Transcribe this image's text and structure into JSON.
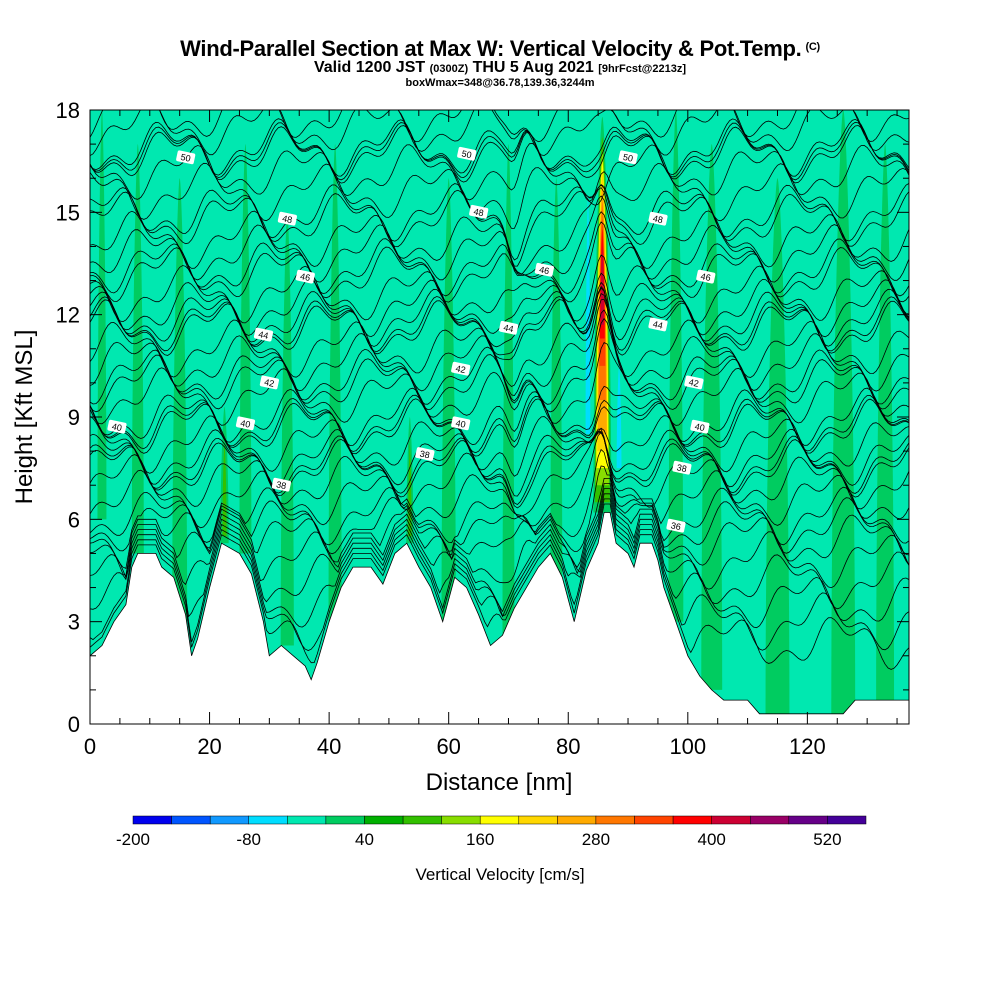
{
  "header": {
    "title": "Wind-Parallel Section at Max W: Vertical Velocity & Pot.Temp.",
    "copyright": "(C)",
    "valid_main": "Valid 1200 JST",
    "valid_utc": "(0300Z)",
    "valid_date": "THU 5 Aug 2021",
    "valid_fcst": "[9hrFcst@2213z]",
    "box_info": "boxWmax=348@36.78,139.36,3244m"
  },
  "chart_data": {
    "type": "heatmap",
    "title": "Wind-Parallel Section at Max W: Vertical Velocity & Pot.Temp.",
    "xlabel": "Distance [nm]",
    "ylabel": "Height [Kft MSL]",
    "xlim": [
      0,
      137
    ],
    "ylim": [
      0,
      18
    ],
    "x_ticks": [
      "0",
      "20",
      "40",
      "60",
      "80",
      "100",
      "120"
    ],
    "y_ticks": [
      "0",
      "3",
      "6",
      "9",
      "12",
      "15",
      "18"
    ],
    "colorbar": {
      "label": "Vertical Velocity [cm/s]",
      "tick_labels": [
        "-200",
        "-80",
        "40",
        "160",
        "280",
        "400",
        "520"
      ],
      "tick_values": [
        -200,
        -80,
        40,
        160,
        280,
        400,
        520
      ],
      "min": -200,
      "max": 560,
      "step": 40,
      "colors": [
        "#0000ee",
        "#0055ff",
        "#1199ff",
        "#00ddff",
        "#00e8b0",
        "#00cc60",
        "#00b000",
        "#33c000",
        "#88dd00",
        "#ffff00",
        "#ffd700",
        "#ffaa00",
        "#ff7700",
        "#ff4400",
        "#ff0000",
        "#cc0033",
        "#990066",
        "#660088",
        "#440099"
      ]
    },
    "background_color": "#00e8b0",
    "terrain_color": "#ffffff",
    "terrain": [
      {
        "x": 0,
        "h": 2.0
      },
      {
        "x": 2,
        "h": 2.3
      },
      {
        "x": 4,
        "h": 3.0
      },
      {
        "x": 6,
        "h": 3.5
      },
      {
        "x": 7,
        "h": 4.6
      },
      {
        "x": 8,
        "h": 5.0
      },
      {
        "x": 11,
        "h": 5.0
      },
      {
        "x": 12,
        "h": 4.6
      },
      {
        "x": 14,
        "h": 4.3
      },
      {
        "x": 16,
        "h": 3.2
      },
      {
        "x": 17,
        "h": 2.0
      },
      {
        "x": 18,
        "h": 2.5
      },
      {
        "x": 20,
        "h": 4.0
      },
      {
        "x": 22,
        "h": 5.3
      },
      {
        "x": 25,
        "h": 5.0
      },
      {
        "x": 27,
        "h": 4.4
      },
      {
        "x": 29,
        "h": 3.0
      },
      {
        "x": 30,
        "h": 2.0
      },
      {
        "x": 32,
        "h": 2.3
      },
      {
        "x": 34,
        "h": 2.0
      },
      {
        "x": 36,
        "h": 1.7
      },
      {
        "x": 37,
        "h": 1.3
      },
      {
        "x": 38,
        "h": 1.8
      },
      {
        "x": 40,
        "h": 3.0
      },
      {
        "x": 42,
        "h": 4.0
      },
      {
        "x": 44,
        "h": 4.6
      },
      {
        "x": 47,
        "h": 4.6
      },
      {
        "x": 49,
        "h": 4.1
      },
      {
        "x": 51,
        "h": 5.0
      },
      {
        "x": 53,
        "h": 5.3
      },
      {
        "x": 55,
        "h": 4.6
      },
      {
        "x": 57,
        "h": 4.0
      },
      {
        "x": 59,
        "h": 3.0
      },
      {
        "x": 61,
        "h": 4.3
      },
      {
        "x": 63,
        "h": 4.0
      },
      {
        "x": 65,
        "h": 3.2
      },
      {
        "x": 67,
        "h": 2.3
      },
      {
        "x": 69,
        "h": 2.6
      },
      {
        "x": 71,
        "h": 3.4
      },
      {
        "x": 73,
        "h": 4.0
      },
      {
        "x": 75,
        "h": 4.6
      },
      {
        "x": 77,
        "h": 5.0
      },
      {
        "x": 79,
        "h": 4.3
      },
      {
        "x": 81,
        "h": 3.0
      },
      {
        "x": 83,
        "h": 4.5
      },
      {
        "x": 85,
        "h": 5.3
      },
      {
        "x": 86,
        "h": 6.2
      },
      {
        "x": 87,
        "h": 6.2
      },
      {
        "x": 88,
        "h": 5.3
      },
      {
        "x": 90,
        "h": 5.0
      },
      {
        "x": 91,
        "h": 4.6
      },
      {
        "x": 92,
        "h": 5.3
      },
      {
        "x": 94,
        "h": 5.3
      },
      {
        "x": 95,
        "h": 4.8
      },
      {
        "x": 96,
        "h": 4.0
      },
      {
        "x": 98,
        "h": 3.0
      },
      {
        "x": 100,
        "h": 2.0
      },
      {
        "x": 102,
        "h": 1.4
      },
      {
        "x": 104,
        "h": 1.0
      },
      {
        "x": 106,
        "h": 0.7
      },
      {
        "x": 110,
        "h": 0.7
      },
      {
        "x": 112,
        "h": 0.3
      },
      {
        "x": 120,
        "h": 0.3
      },
      {
        "x": 126,
        "h": 0.3
      },
      {
        "x": 128,
        "h": 0.7
      },
      {
        "x": 137,
        "h": 0.7
      }
    ],
    "updrafts": [
      {
        "x": 2,
        "width": 1.5,
        "bottom": 6,
        "top": 18,
        "color": "#00cc60"
      },
      {
        "x": 8,
        "width": 2.0,
        "bottom": 5,
        "top": 17,
        "color": "#00cc60"
      },
      {
        "x": 15,
        "width": 2.5,
        "bottom": 3,
        "top": 16,
        "color": "#00cc60"
      },
      {
        "x": 22.5,
        "width": 1.4,
        "bottom": 5.3,
        "top": 9.3,
        "color": "#00cc60"
      },
      {
        "x": 22.5,
        "width": 0.7,
        "bottom": 5.5,
        "top": 8.2,
        "color": "#33c000"
      },
      {
        "x": 26,
        "width": 2.0,
        "bottom": 5,
        "top": 17,
        "color": "#00cc60"
      },
      {
        "x": 33,
        "width": 2.2,
        "bottom": 2.3,
        "top": 15,
        "color": "#00cc60"
      },
      {
        "x": 41,
        "width": 2.2,
        "bottom": 3,
        "top": 17,
        "color": "#00cc60"
      },
      {
        "x": 53.5,
        "width": 1.2,
        "bottom": 5.3,
        "top": 9.0,
        "color": "#00cc60"
      },
      {
        "x": 53.5,
        "width": 0.6,
        "bottom": 5.5,
        "top": 8.2,
        "color": "#33c000"
      },
      {
        "x": 60,
        "width": 2.4,
        "bottom": 3,
        "top": 16,
        "color": "#00cc60"
      },
      {
        "x": 70,
        "width": 2.0,
        "bottom": 2.6,
        "top": 17,
        "color": "#00cc60"
      },
      {
        "x": 78,
        "width": 2.0,
        "bottom": 4.3,
        "top": 16,
        "color": "#00cc60"
      },
      {
        "x": 98,
        "width": 2.5,
        "bottom": 3,
        "top": 18,
        "color": "#00cc60"
      },
      {
        "x": 104,
        "width": 3.5,
        "bottom": 1,
        "top": 17,
        "color": "#00cc60"
      },
      {
        "x": 115,
        "width": 4.0,
        "bottom": 0.3,
        "top": 16,
        "color": "#00cc60"
      },
      {
        "x": 126,
        "width": 4.0,
        "bottom": 0.3,
        "top": 18,
        "color": "#00cc60"
      },
      {
        "x": 133,
        "width": 3.0,
        "bottom": 0.7,
        "top": 17,
        "color": "#00cc60"
      }
    ],
    "core_updraft": {
      "x": 85.7,
      "layers": [
        {
          "width": 3.0,
          "bottom": 6.2,
          "top": 17.8,
          "color": "#00cc60"
        },
        {
          "width": 2.5,
          "bottom": 6.5,
          "top": 17.2,
          "color": "#33c000"
        },
        {
          "width": 2.2,
          "bottom": 7.0,
          "top": 16.8,
          "color": "#88dd00"
        },
        {
          "width": 2.0,
          "bottom": 7.5,
          "top": 16.5,
          "color": "#ffff00"
        },
        {
          "width": 1.7,
          "bottom": 8.0,
          "top": 16.2,
          "color": "#ffd700"
        },
        {
          "width": 1.5,
          "bottom": 8.5,
          "top": 15.8,
          "color": "#ffaa00"
        },
        {
          "width": 1.2,
          "bottom": 9.5,
          "top": 15.3,
          "color": "#ff7700"
        },
        {
          "width": 1.0,
          "bottom": 10.5,
          "top": 14.8,
          "color": "#ff4400"
        },
        {
          "width": 0.8,
          "bottom": 11.3,
          "top": 14.5,
          "color": "#ff0000"
        },
        {
          "width": 0.55,
          "bottom": 11.7,
          "top": 14.0,
          "color": "#cc0033"
        }
      ],
      "downdraft_left": {
        "x": 83.3,
        "width": 0.8,
        "bottom": 8.5,
        "top": 15.5,
        "color": "#00ddff"
      },
      "downdraft_right": {
        "x": 88.5,
        "width": 0.8,
        "bottom": 7.5,
        "top": 10.5,
        "color": "#00ddff"
      }
    },
    "isentropes": [
      {
        "label": "50",
        "base": 16.9,
        "label_x": 16,
        "label_h": 16.6
      },
      {
        "label": "50",
        "base": 16.8,
        "label_x": 63,
        "label_h": 16.7
      },
      {
        "label": "50",
        "base": 16.7,
        "label_x": 90,
        "label_h": 16.6
      },
      {
        "label": "48",
        "base": 15.0,
        "label_x": 33,
        "label_h": 14.8
      },
      {
        "label": "48",
        "base": 15.0,
        "label_x": 65,
        "label_h": 15.0
      },
      {
        "label": "48",
        "base": 14.8,
        "label_x": 95,
        "label_h": 14.8
      },
      {
        "label": "46",
        "base": 13.4,
        "label_x": 36,
        "label_h": 13.1
      },
      {
        "label": "46",
        "base": 13.4,
        "label_x": 76,
        "label_h": 13.3
      },
      {
        "label": "46",
        "base": 13.2,
        "label_x": 103,
        "label_h": 13.1
      },
      {
        "label": "44",
        "base": 11.6,
        "label_x": 29,
        "label_h": 11.4
      },
      {
        "label": "44",
        "base": 11.9,
        "label_x": 70,
        "label_h": 11.6
      },
      {
        "label": "44",
        "base": 11.7,
        "label_x": 95,
        "label_h": 11.7
      },
      {
        "label": "42",
        "base": 10.2,
        "label_x": 30,
        "label_h": 10.0
      },
      {
        "label": "42",
        "base": 10.6,
        "label_x": 62,
        "label_h": 10.4
      },
      {
        "label": "42",
        "base": 10.0,
        "label_x": 101,
        "label_h": 10.0
      },
      {
        "label": "40",
        "base": 9.0,
        "label_x": 4.5,
        "label_h": 8.7
      },
      {
        "label": "40",
        "base": 8.8,
        "label_x": 26,
        "label_h": 8.8
      },
      {
        "label": "40",
        "base": 8.8,
        "label_x": 62,
        "label_h": 8.8
      },
      {
        "label": "40",
        "base": 8.7,
        "label_x": 102,
        "label_h": 8.7
      },
      {
        "label": "38",
        "base": 7.1,
        "label_x": 32,
        "label_h": 7.0
      },
      {
        "label": "38",
        "base": 7.8,
        "label_x": 56,
        "label_h": 7.9
      },
      {
        "label": "38",
        "base": 7.5,
        "label_x": 99,
        "label_h": 7.5
      },
      {
        "label": "36",
        "base": 5.8,
        "label_x": 98,
        "label_h": 5.8
      }
    ],
    "unlabeled_isentrope_levels": [
      17.5,
      17.9,
      16.2,
      15.6,
      14.2,
      13.8,
      12.6,
      12.2,
      11.0,
      9.6,
      8.2,
      7.6,
      6.6,
      6.1,
      5.4,
      4.8,
      4.2,
      3.6,
      3.0,
      2.4
    ]
  }
}
